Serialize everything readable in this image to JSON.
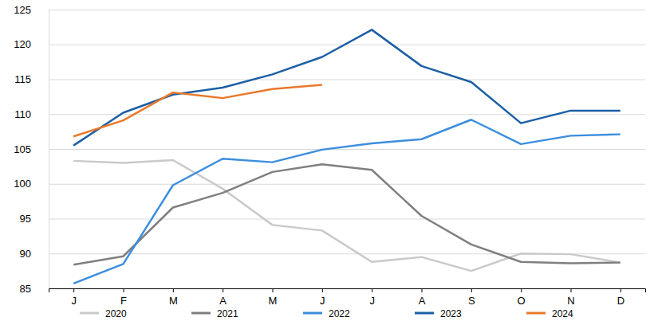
{
  "chart_data": {
    "type": "line",
    "categories": [
      "J",
      "F",
      "M",
      "A",
      "M",
      "J",
      "J",
      "A",
      "S",
      "O",
      "N",
      "D"
    ],
    "series": [
      {
        "name": "2020",
        "color": "#c9c9c9",
        "values": [
          103.3,
          103.0,
          103.4,
          99.3,
          94.1,
          93.3,
          88.8,
          89.5,
          87.5,
          90.0,
          89.9,
          88.7
        ]
      },
      {
        "name": "2021",
        "color": "#7f7f7f",
        "values": [
          88.4,
          89.6,
          96.6,
          98.7,
          101.7,
          102.8,
          102.0,
          95.4,
          91.3,
          88.8,
          88.6,
          88.7
        ]
      },
      {
        "name": "2022",
        "color": "#3b8ede",
        "values": [
          85.7,
          88.5,
          99.8,
          103.6,
          103.1,
          104.9,
          105.8,
          106.4,
          109.2,
          105.7,
          106.9,
          107.1
        ]
      },
      {
        "name": "2023",
        "color": "#1c5fa5",
        "values": [
          105.5,
          110.2,
          112.8,
          113.8,
          115.7,
          118.2,
          122.1,
          116.9,
          114.6,
          108.7,
          110.5,
          110.5
        ]
      },
      {
        "name": "2024",
        "color": "#e9782a",
        "values": [
          106.8,
          109.1,
          113.1,
          112.3,
          113.6,
          114.2,
          null,
          null,
          null,
          null,
          null,
          null
        ]
      }
    ],
    "ylim": [
      85,
      125
    ],
    "yticks": [
      85,
      90,
      95,
      100,
      105,
      110,
      115,
      120,
      125
    ],
    "grid": true,
    "legend": "bottom"
  }
}
